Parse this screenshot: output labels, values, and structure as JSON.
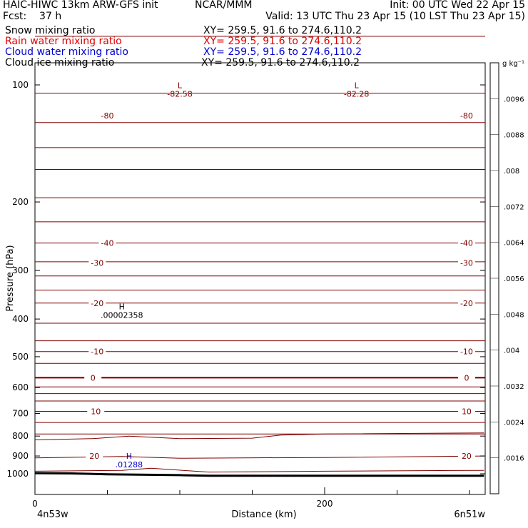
{
  "header": {
    "left_line1": "HAIC-HIWC 13km ARW-GFS init",
    "center_line1": "NCAR/MMM",
    "right_line1": "Init: 00 UTC Wed 22 Apr 15",
    "left_line2": "Fcst:    37 h",
    "right_line2": "Valid: 13 UTC Thu 23 Apr 15 (10 LST Thu 23 Apr 15)",
    "fields": [
      {
        "name": "Snow mixing ratio",
        "xy": "XY= 259.5, 91.6 to 274.6,110.2",
        "color": "#000000"
      },
      {
        "name": "Rain water mixing ratio",
        "xy": "XY= 259.5, 91.6 to 274.6,110.2",
        "color": "#e00000"
      },
      {
        "name": "Cloud water mixing ratio",
        "xy": "XY= 259.5, 91.6 to 274.6,110.2",
        "color": "#0000d0"
      },
      {
        "name": "Cloud ice mixing ratio",
        "xy": "XY= 259.5, 91.6 to 274.6,110.2",
        "color": "#000000"
      }
    ]
  },
  "chart_data": {
    "type": "contour cross-section",
    "ylabel": "Pressure (hPa)",
    "xlabel": "Distance (km)",
    "ylim": [
      1050,
      50
    ],
    "xlim": [
      0,
      310
    ],
    "y_ticks": [
      100,
      200,
      300,
      400,
      500,
      600,
      700,
      800,
      900,
      1000
    ],
    "x_ticks": [
      0,
      200
    ],
    "x_end_labels": {
      "left": "4n53w",
      "right": "6n51w"
    },
    "colorbar": {
      "unit_label": "g kg⁻¹",
      "tick_labels": [
        ".0096",
        ".0088",
        ".008",
        ".0072",
        ".0064",
        ".0056",
        ".0048",
        ".004",
        ".0032",
        ".0024",
        ".0016"
      ]
    },
    "isotherm_labels": [
      {
        "text": "-80",
        "x": 50,
        "p": 120
      },
      {
        "text": "-80",
        "x": 298,
        "p": 120
      },
      {
        "text": "-40",
        "x": 50,
        "p": 255
      },
      {
        "text": "-40",
        "x": 298,
        "p": 255
      },
      {
        "text": "-30",
        "x": 43,
        "p": 287
      },
      {
        "text": "-30",
        "x": 298,
        "p": 287
      },
      {
        "text": "-20",
        "x": 43,
        "p": 364
      },
      {
        "text": "-20",
        "x": 298,
        "p": 364
      },
      {
        "text": "-10",
        "x": 43,
        "p": 485
      },
      {
        "text": "-10",
        "x": 298,
        "p": 485
      },
      {
        "text": "0",
        "x": 40,
        "p": 566
      },
      {
        "text": "0",
        "x": 298,
        "p": 566
      },
      {
        "text": "10",
        "x": 42,
        "p": 691
      },
      {
        "text": "10",
        "x": 298,
        "p": 691
      },
      {
        "text": "20",
        "x": 41,
        "p": 899
      },
      {
        "text": "20",
        "x": 298,
        "p": 899
      }
    ],
    "extrema": [
      {
        "symbol": "L",
        "value": "-82.58",
        "x": 100,
        "p": 102,
        "color": "#800000"
      },
      {
        "symbol": "L",
        "value": "-82.28",
        "x": 222,
        "p": 102,
        "color": "#800000"
      },
      {
        "symbol": "H",
        "value": ".00002358",
        "x": 60,
        "p": 378,
        "color": "#000000"
      },
      {
        "symbol": "H",
        "value": ".01288",
        "x": 65,
        "p": 916,
        "color": "#0000d0"
      }
    ],
    "isotherm_pressures": [
      60,
      75,
      105,
      125,
      145,
      165,
      195,
      225,
      255,
      285,
      310,
      337,
      364,
      410,
      455,
      485,
      520,
      566,
      598,
      622,
      650,
      691,
      738,
      790
    ],
    "contour_20_profile": [
      [
        0,
        910
      ],
      [
        60,
        903
      ],
      [
        100,
        912
      ],
      [
        200,
        908
      ],
      [
        310,
        900
      ]
    ],
    "contour_lower_profile": [
      [
        0,
        985
      ],
      [
        60,
        980
      ],
      [
        80,
        968
      ],
      [
        120,
        990
      ],
      [
        200,
        985
      ],
      [
        310,
        980
      ]
    ],
    "contour_800_profile": [
      [
        0,
        818
      ],
      [
        40,
        812
      ],
      [
        65,
        800
      ],
      [
        100,
        812
      ],
      [
        150,
        810
      ],
      [
        170,
        795
      ],
      [
        200,
        790
      ],
      [
        310,
        785
      ]
    ],
    "terrain_profile": [
      [
        0,
        996
      ],
      [
        25,
        998
      ],
      [
        50,
        1003
      ],
      [
        100,
        1008
      ],
      [
        120,
        1012
      ],
      [
        310,
        1012
      ]
    ]
  },
  "colors": {
    "isotherm": "#800000",
    "terrain": "#000000"
  }
}
